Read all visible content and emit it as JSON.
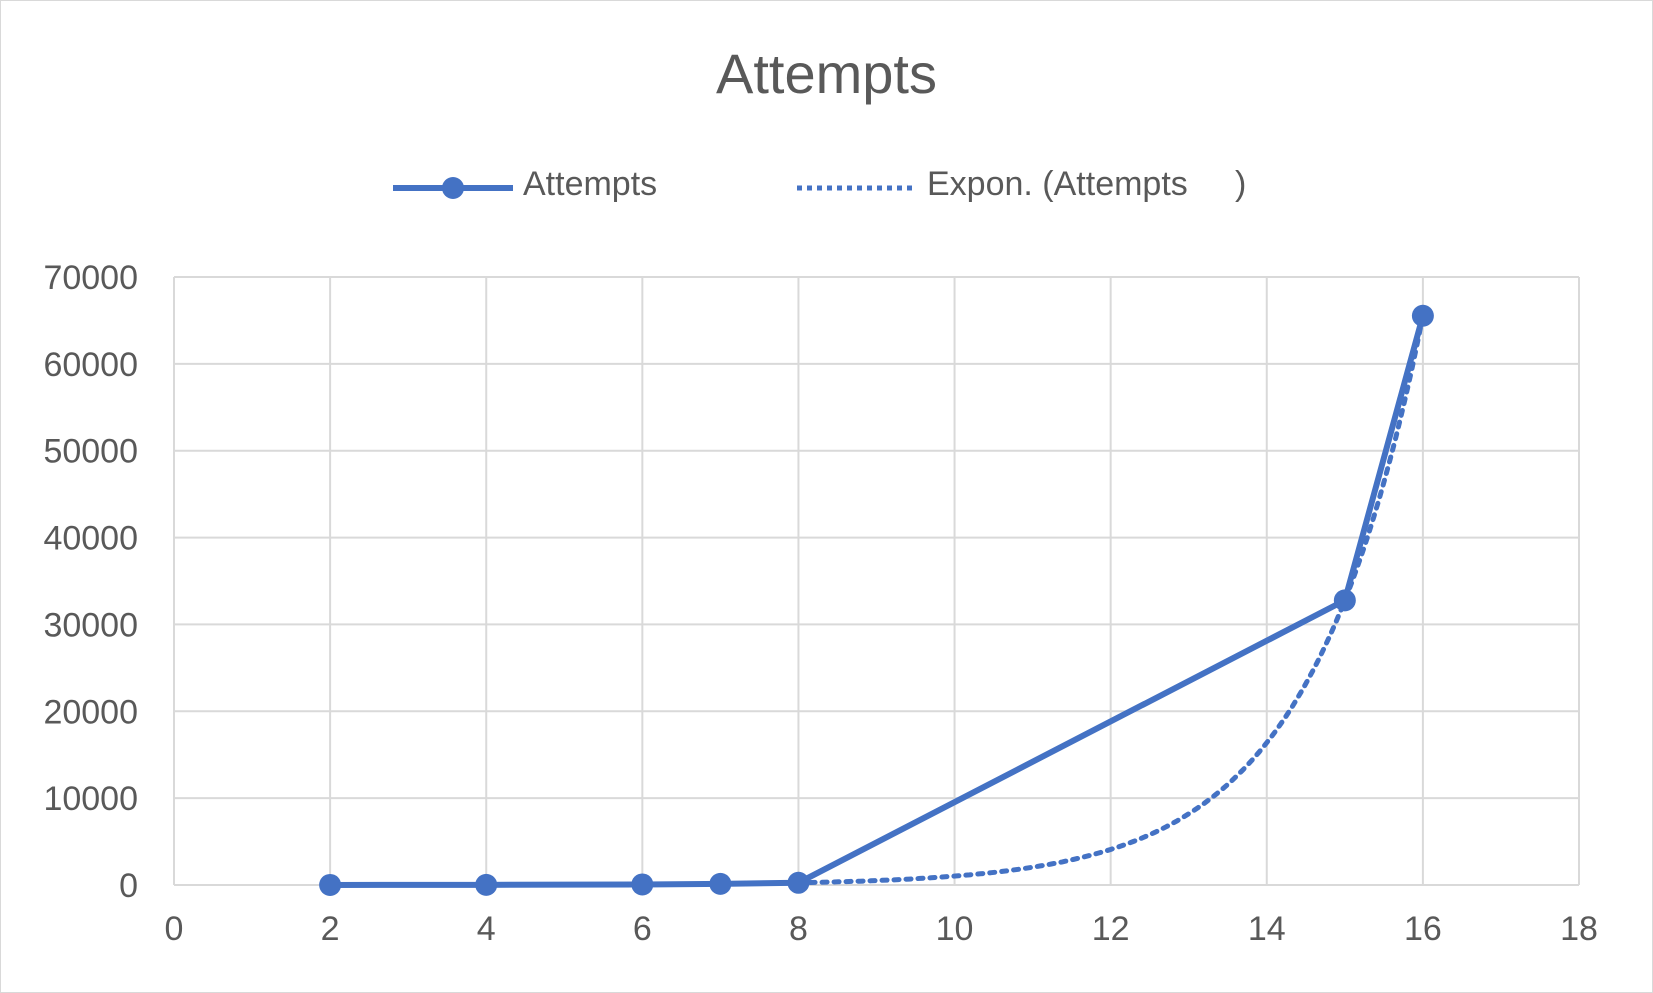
{
  "chart_data": {
    "type": "scatter",
    "title": "Attempts",
    "xlabel": "",
    "ylabel": "",
    "xlim": [
      0,
      18
    ],
    "ylim": [
      0,
      70000
    ],
    "x_ticks": [
      "0",
      "2",
      "4",
      "6",
      "8",
      "10",
      "12",
      "14",
      "16",
      "18"
    ],
    "y_ticks": [
      "0",
      "10000",
      "20000",
      "30000",
      "40000",
      "50000",
      "60000",
      "70000"
    ],
    "grid": true,
    "legend_position": "top",
    "series": [
      {
        "name": "Attempts",
        "style": "line-with-markers",
        "color": "#4472C4",
        "x": [
          2,
          4,
          6,
          7,
          8,
          15,
          16
        ],
        "y": [
          4,
          16,
          64,
          128,
          256,
          32768,
          65536
        ]
      },
      {
        "name": "Expon. (Attempts     )",
        "style": "dotted-trendline",
        "color": "#4472C4",
        "trend": "exponential"
      }
    ]
  }
}
